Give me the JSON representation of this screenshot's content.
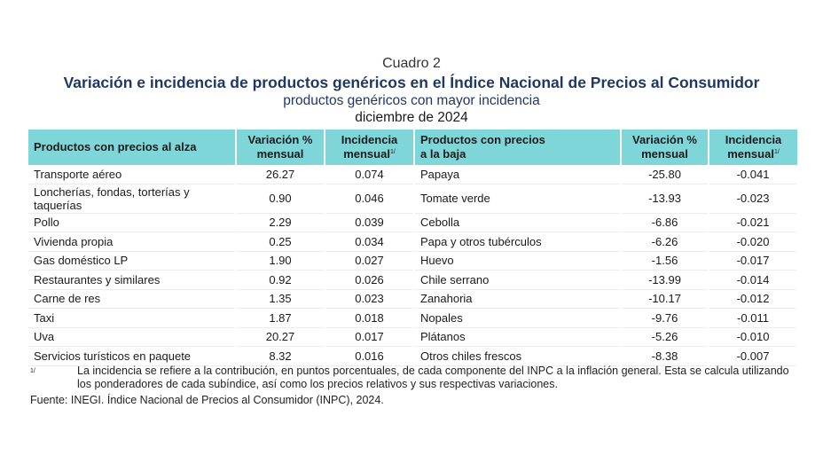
{
  "header": {
    "cuadro": "Cuadro 2",
    "title": "Variación e incidencia de productos genéricos en el Índice Nacional de Precios al Consumidor",
    "subtitle": "productos genéricos con mayor incidencia",
    "date": "diciembre de 2024"
  },
  "table": {
    "headers": {
      "up_product": "Productos con precios al alza",
      "up_variation_1": "Variación %",
      "up_variation_2": "mensual",
      "up_incidence_1": "Incidencia",
      "up_incidence_2": "mensual",
      "down_product_1": "Productos con precios",
      "down_product_2": "a la baja",
      "down_variation_1": "Variación %",
      "down_variation_2": "mensual",
      "down_incidence_1": "Incidencia",
      "down_incidence_2": "mensual",
      "footnote_mark": "1/"
    },
    "rows": [
      {
        "up": "Transporte aéreo",
        "up_var": "26.27",
        "up_inc": "0.074",
        "down": "Papaya",
        "down_var": "-25.80",
        "down_inc": "-0.041"
      },
      {
        "up": "Loncherías, fondas, torterías y taquerías",
        "up_var": "0.90",
        "up_inc": "0.046",
        "down": "Tomate verde",
        "down_var": "-13.93",
        "down_inc": "-0.023"
      },
      {
        "up": "Pollo",
        "up_var": "2.29",
        "up_inc": "0.039",
        "down": "Cebolla",
        "down_var": "-6.86",
        "down_inc": "-0.021"
      },
      {
        "up": "Vivienda propia",
        "up_var": "0.25",
        "up_inc": "0.034",
        "down": "Papa y otros tubérculos",
        "down_var": "-6.26",
        "down_inc": "-0.020"
      },
      {
        "up": "Gas doméstico LP",
        "up_var": "1.90",
        "up_inc": "0.027",
        "down": "Huevo",
        "down_var": "-1.56",
        "down_inc": "-0.017"
      },
      {
        "up": "Restaurantes y similares",
        "up_var": "0.92",
        "up_inc": "0.026",
        "down": "Chile serrano",
        "down_var": "-13.99",
        "down_inc": "-0.014"
      },
      {
        "up": "Carne de res",
        "up_var": "1.35",
        "up_inc": "0.023",
        "down": "Zanahoria",
        "down_var": "-10.17",
        "down_inc": "-0.012"
      },
      {
        "up": "Taxi",
        "up_var": "1.87",
        "up_inc": "0.018",
        "down": "Nopales",
        "down_var": "-9.76",
        "down_inc": "-0.011"
      },
      {
        "up": "Uva",
        "up_var": "20.27",
        "up_inc": "0.017",
        "down": "Plátanos",
        "down_var": "-5.26",
        "down_inc": "-0.010"
      },
      {
        "up": "Servicios turísticos en paquete",
        "up_var": "8.32",
        "up_inc": "0.016",
        "down": "Otros chiles frescos",
        "down_var": "-8.38",
        "down_inc": "-0.007"
      }
    ]
  },
  "footnote": {
    "mark": "1/",
    "text": "La incidencia se refiere a la contribución, en puntos porcentuales, de cada componente del INPC a la inflación general. Esta se calcula utilizando los ponderadores de cada subíndice, así como los precios relativos y sus respectivas variaciones."
  },
  "source": {
    "text": "Fuente: INEGI. Índice Nacional de Precios al Consumidor (INPC), 2024."
  }
}
